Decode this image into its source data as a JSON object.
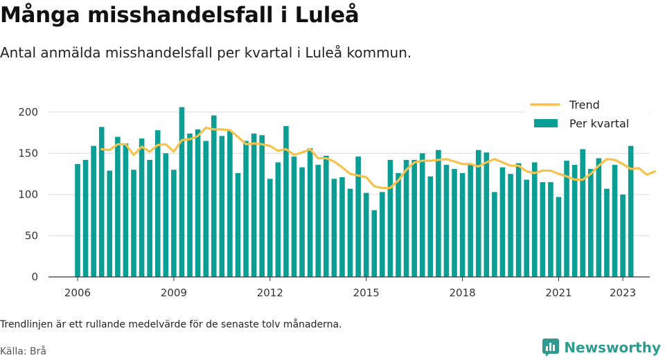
{
  "header": {
    "title": "Många misshandelsfall i Luleå",
    "subtitle": "Antal anmälda misshandelsfall per kvartal i Luleå kommun."
  },
  "footer": {
    "note": "Trendlinjen är ett rullande medelvärde för de senaste tolv månaderna.",
    "source": "Källa: Brå",
    "brand": "Newsworthy"
  },
  "colors": {
    "bar": "#0b9e95",
    "trend": "#f5c24c",
    "grid": "#dddddd",
    "brand": "#2f9a8f"
  },
  "chart_data": {
    "type": "bar",
    "title": "Många misshandelsfall i Luleå",
    "subtitle": "Antal anmälda misshandelsfall per kvartal i Luleå kommun.",
    "x_start": 2006.0,
    "x_step": 0.25,
    "xlim": [
      2006.0,
      2023.25
    ],
    "ylim": [
      0,
      210
    ],
    "x_ticks": [
      2006,
      2009,
      2012,
      2015,
      2018,
      2021,
      2023
    ],
    "y_ticks": [
      0,
      50,
      100,
      150,
      200
    ],
    "grid": true,
    "legend_position": "top-right",
    "series": [
      {
        "name": "Per kvartal",
        "type": "bar",
        "values": [
          137,
          142,
          159,
          182,
          129,
          170,
          162,
          130,
          168,
          142,
          178,
          150,
          130,
          206,
          174,
          179,
          165,
          196,
          171,
          177,
          126,
          165,
          174,
          172,
          119,
          139,
          183,
          146,
          133,
          156,
          136,
          147,
          119,
          121,
          107,
          146,
          102,
          81,
          103,
          142,
          126,
          142,
          142,
          150,
          122,
          154,
          136,
          131,
          126,
          136,
          154,
          151,
          103,
          133,
          125,
          138,
          118,
          139,
          115,
          115,
          97,
          141,
          136,
          155,
          131,
          144,
          107,
          136,
          100,
          159
        ]
      },
      {
        "name": "Trend",
        "type": "line",
        "x_start": 2006.75,
        "values": [
          155,
          154,
          161,
          161,
          148,
          158,
          152,
          160,
          161,
          152,
          166,
          167,
          171,
          181,
          179,
          179,
          178,
          170,
          161,
          162,
          161,
          159,
          153,
          155,
          148,
          151,
          155,
          144,
          144,
          140,
          133,
          125,
          123,
          121,
          110,
          108,
          108,
          117,
          130,
          139,
          141,
          141,
          142,
          143,
          140,
          137,
          137,
          134,
          139,
          143,
          139,
          135,
          135,
          128,
          126,
          129,
          129,
          125,
          122,
          118,
          118,
          125,
          135,
          143,
          142,
          137,
          131,
          132,
          124,
          128
        ]
      }
    ]
  }
}
